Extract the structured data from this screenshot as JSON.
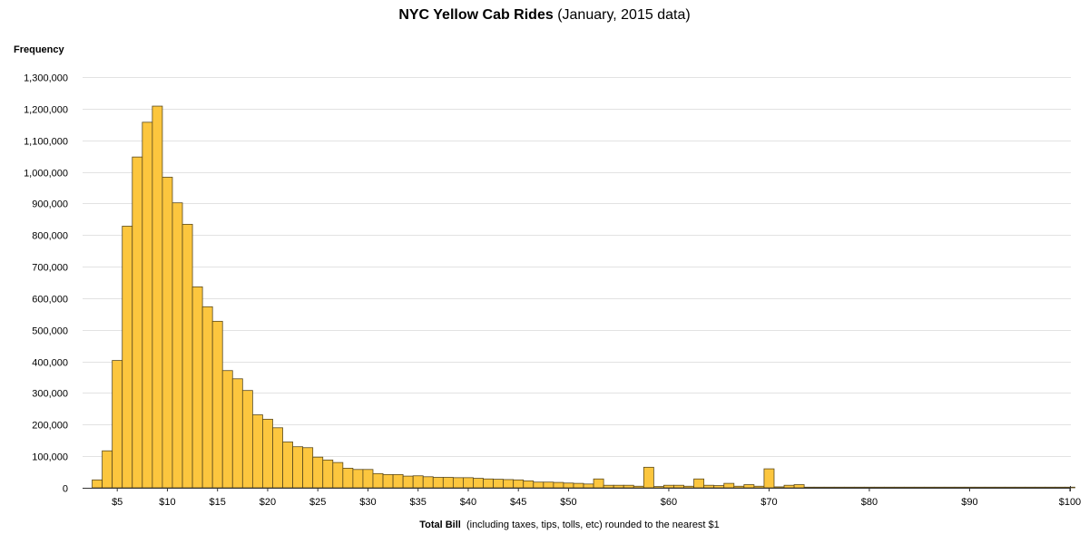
{
  "title": {
    "bold": "NYC Yellow Cab Rides",
    "rest": "(January, 2015 data)"
  },
  "axis": {
    "ylabel": "Frequency",
    "xlabel_bold": "Total Bill",
    "xlabel_rest": "  (including taxes, tips, tolls, etc) rounded to the nearest $1"
  },
  "colors": {
    "bar_fill": "#FCC63E",
    "bar_stroke": "#5A4A1E",
    "grid": "#E2E2E2",
    "axis": "#333333"
  },
  "chart_data": {
    "type": "bar",
    "title": "NYC Yellow Cab Rides (January, 2015 data)",
    "xlabel": "Total Bill  (including taxes, tips, tolls, etc) rounded to the nearest $1",
    "ylabel": "Frequency",
    "xlim": [
      2,
      100
    ],
    "ylim": [
      0,
      1300000
    ],
    "grid": true,
    "x_ticks": [
      "$5",
      "$10",
      "$15",
      "$20",
      "$25",
      "$30",
      "$35",
      "$40",
      "$45",
      "$50",
      "$60",
      "$70",
      "$80",
      "$90",
      "$100"
    ],
    "x_tick_values": [
      5,
      10,
      15,
      20,
      25,
      30,
      35,
      40,
      45,
      50,
      60,
      70,
      80,
      90,
      100
    ],
    "y_ticks": [
      "0",
      "100,000",
      "200,000",
      "300,000",
      "400,000",
      "500,000",
      "600,000",
      "700,000",
      "800,000",
      "900,000",
      "1,000,000",
      "1,100,000",
      "1,200,000",
      "1,300,000"
    ],
    "y_tick_values": [
      0,
      100000,
      200000,
      300000,
      400000,
      500000,
      600000,
      700000,
      800000,
      900000,
      1000000,
      1100000,
      1200000,
      1300000
    ],
    "x": [
      3,
      4,
      5,
      6,
      7,
      8,
      9,
      10,
      11,
      12,
      13,
      14,
      15,
      16,
      17,
      18,
      19,
      20,
      21,
      22,
      23,
      24,
      25,
      26,
      27,
      28,
      29,
      30,
      31,
      32,
      33,
      34,
      35,
      36,
      37,
      38,
      39,
      40,
      41,
      42,
      43,
      44,
      45,
      46,
      47,
      48,
      49,
      50,
      51,
      52,
      53,
      54,
      55,
      56,
      57,
      58,
      59,
      60,
      61,
      62,
      63,
      64,
      65,
      66,
      67,
      68,
      69,
      70,
      71,
      72,
      73,
      74,
      75,
      76,
      77,
      78,
      79,
      80,
      81,
      82,
      83,
      84,
      85,
      86,
      87,
      88,
      89,
      90,
      91,
      92,
      93,
      94,
      95,
      96,
      97,
      98,
      99,
      100
    ],
    "values": [
      25000,
      117000,
      403000,
      828000,
      1047000,
      1157000,
      1208000,
      983000,
      902000,
      834000,
      636000,
      573000,
      527000,
      371000,
      345000,
      308000,
      231000,
      217000,
      190000,
      145000,
      130000,
      127000,
      97000,
      88000,
      80000,
      62000,
      58000,
      58000,
      45000,
      42000,
      42000,
      37000,
      38000,
      35000,
      33000,
      33000,
      32000,
      32000,
      30000,
      28000,
      27000,
      26000,
      25000,
      22000,
      18000,
      18000,
      17000,
      15000,
      14000,
      12000,
      28000,
      8000,
      8000,
      8000,
      5000,
      65000,
      4000,
      8000,
      8000,
      5000,
      28000,
      8000,
      7000,
      14000,
      5000,
      10000,
      5000,
      60000,
      3000,
      8000,
      10000,
      2000,
      2000,
      2000,
      2000,
      2000,
      2000,
      2000,
      2000,
      2000,
      2000,
      2000,
      2000,
      2000,
      2000,
      2000,
      2000,
      2000,
      2000,
      2000,
      2000,
      2000,
      2000,
      2000,
      2000,
      2000,
      2000,
      2000
    ]
  }
}
